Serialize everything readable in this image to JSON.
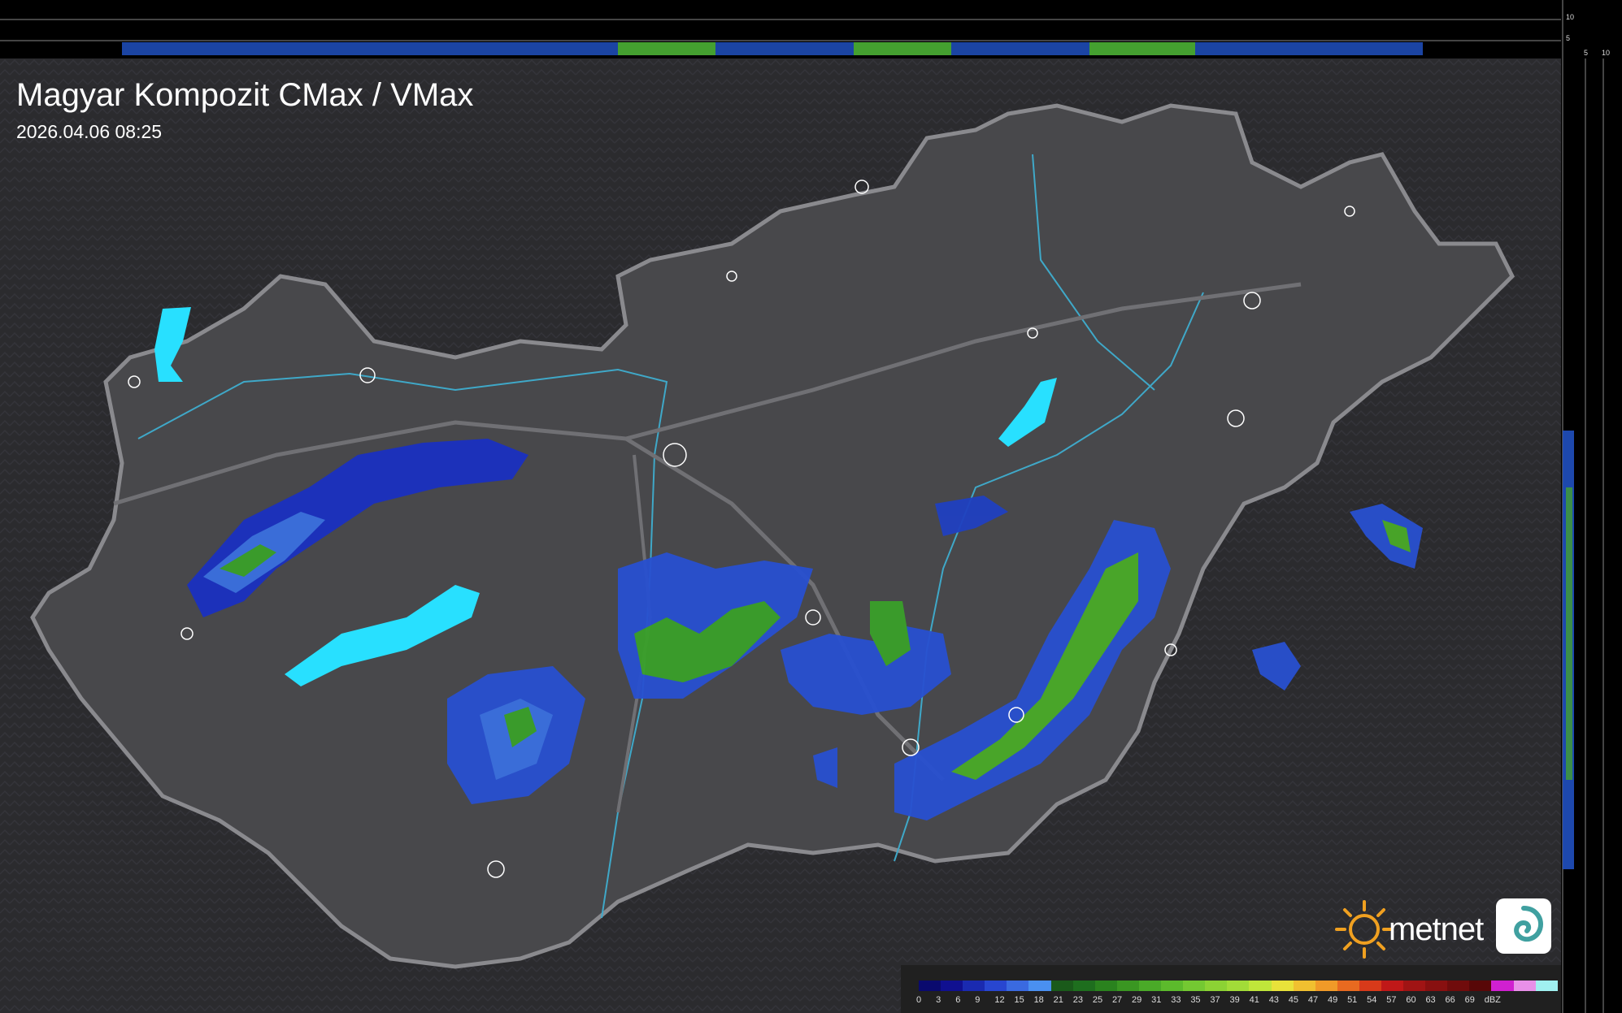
{
  "header": {
    "title": "Magyar Kompozit CMax / VMax",
    "timestamp": "2026.04.06 08:25"
  },
  "brand": {
    "logo_text": "metnet",
    "sun_color": "#f0a020"
  },
  "legend": {
    "unit": "dBZ",
    "values": [
      "0",
      "3",
      "6",
      "9",
      "12",
      "15",
      "18",
      "21",
      "23",
      "25",
      "27",
      "29",
      "31",
      "33",
      "35",
      "37",
      "39",
      "41",
      "43",
      "45",
      "47",
      "49",
      "51",
      "54",
      "57",
      "60",
      "63",
      "66",
      "69"
    ],
    "colors": [
      "#0a0a6e",
      "#101090",
      "#1a2ab0",
      "#2846d0",
      "#3a6ae0",
      "#4a90f0",
      "#1a5a1a",
      "#1e6e1e",
      "#2a821e",
      "#3a9622",
      "#4aaa28",
      "#5cba2c",
      "#74c832",
      "#8cd234",
      "#a2dc38",
      "#c0e63a",
      "#e8e23a",
      "#f0c030",
      "#f09a28",
      "#e86a20",
      "#d83a1a",
      "#c01818",
      "#a01414",
      "#881010",
      "#700c0c",
      "#580808",
      "#d020d0",
      "#e890e8",
      "#a0f0f0"
    ]
  },
  "side_scale": {
    "top_ticks": [
      "10",
      "5"
    ],
    "bottom_ticks": [
      "5",
      "10"
    ]
  },
  "map": {
    "background": "#2a2a2c",
    "country_fill": "#48484b",
    "border_color": "#8a8a8e",
    "river_color": "#3fa8c8",
    "lake_color": "#28e0ff"
  }
}
